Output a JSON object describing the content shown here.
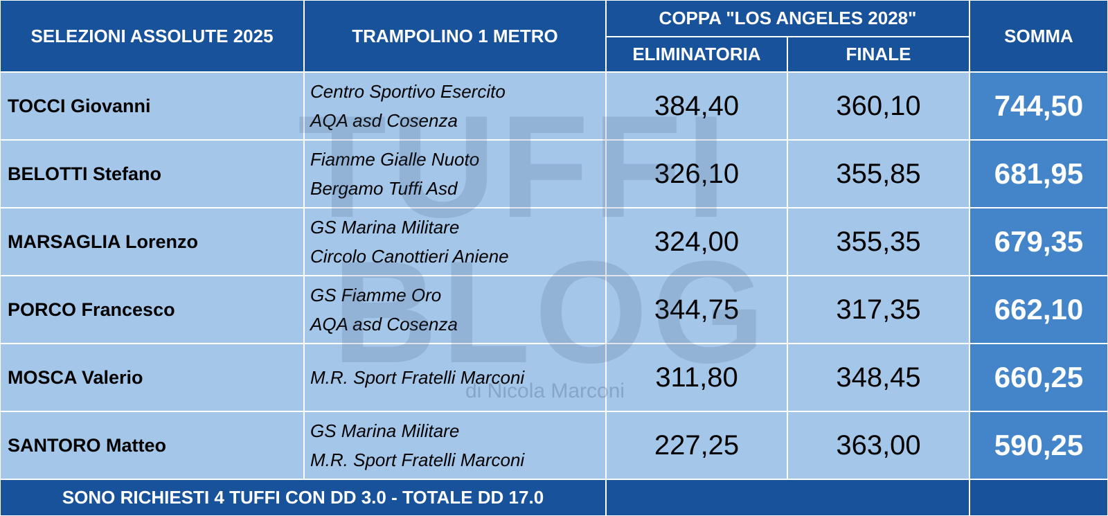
{
  "header": {
    "title": "SELEZIONI ASSOLUTE 2025",
    "event": "TRAMPOLINO 1 METRO",
    "cup": "COPPA \"LOS ANGELES 2028\"",
    "elim": "ELIMINATORIA",
    "finale": "FINALE",
    "somma": "SOMMA"
  },
  "rows": [
    {
      "athlete": "TOCCI Giovanni",
      "clubs": [
        "Centro Sportivo Esercito",
        "AQA asd Cosenza"
      ],
      "elim": "384,40",
      "finale": "360,10",
      "somma": "744,50"
    },
    {
      "athlete": "BELOTTI Stefano",
      "clubs": [
        "Fiamme Gialle Nuoto",
        "Bergamo Tuffi Asd"
      ],
      "elim": "326,10",
      "finale": "355,85",
      "somma": "681,95"
    },
    {
      "athlete": "MARSAGLIA Lorenzo",
      "clubs": [
        "GS Marina Militare",
        "Circolo Canottieri Aniene"
      ],
      "elim": "324,00",
      "finale": "355,35",
      "somma": "679,35"
    },
    {
      "athlete": "PORCO Francesco",
      "clubs": [
        "GS Fiamme Oro",
        "AQA asd Cosenza"
      ],
      "elim": "344,75",
      "finale": "317,35",
      "somma": "662,10"
    },
    {
      "athlete": "MOSCA Valerio",
      "clubs": [
        "M.R. Sport Fratelli Marconi"
      ],
      "elim": "311,80",
      "finale": "348,45",
      "somma": "660,25"
    },
    {
      "athlete": "SANTORO Matteo",
      "clubs": [
        "GS Marina Militare",
        "M.R. Sport Fratelli Marconi"
      ],
      "elim": "227,25",
      "finale": "363,00",
      "somma": "590,25"
    }
  ],
  "footer": "SONO RICHIESTI 4 TUFFI CON DD 3.0 - TOTALE DD 17.0",
  "watermark": {
    "line1": "TUFFI",
    "line2": "BLOG",
    "credit": "di Nicola Marconi"
  }
}
